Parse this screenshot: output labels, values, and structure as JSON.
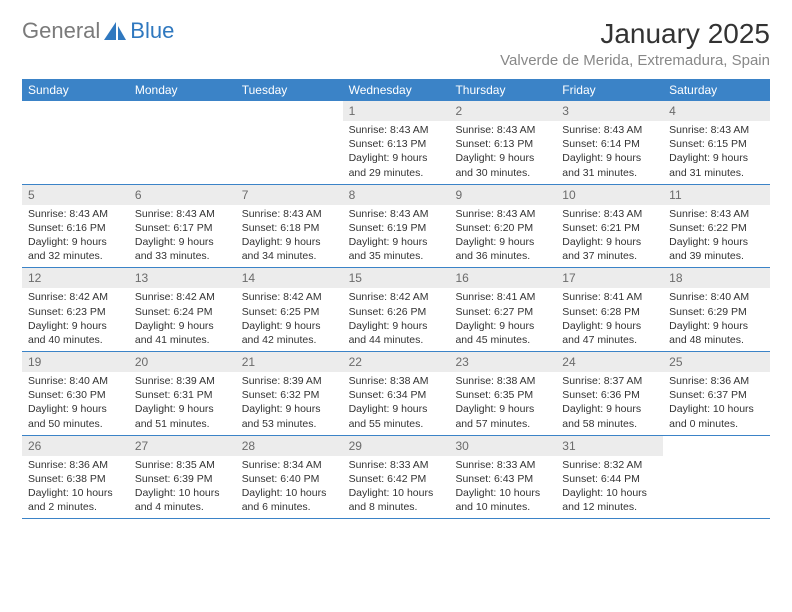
{
  "logo": {
    "text_general": "General",
    "text_blue": "Blue",
    "general_color": "#7a7a7a",
    "blue_color": "#2f78bf"
  },
  "title": "January 2025",
  "location": "Valverde de Merida, Extremadura, Spain",
  "colors": {
    "header_bg": "#3b83c7",
    "header_text": "#ffffff",
    "daynum_bg": "#ececec",
    "daynum_text": "#6b6b6b",
    "body_text": "#333333",
    "location_text": "#888888",
    "row_border": "#3b83c7",
    "page_bg": "#ffffff"
  },
  "weekdays": [
    "Sunday",
    "Monday",
    "Tuesday",
    "Wednesday",
    "Thursday",
    "Friday",
    "Saturday"
  ],
  "weeks": [
    [
      null,
      null,
      null,
      {
        "n": "1",
        "sr": "Sunrise: 8:43 AM",
        "ss": "Sunset: 6:13 PM",
        "dl1": "Daylight: 9 hours",
        "dl2": "and 29 minutes."
      },
      {
        "n": "2",
        "sr": "Sunrise: 8:43 AM",
        "ss": "Sunset: 6:13 PM",
        "dl1": "Daylight: 9 hours",
        "dl2": "and 30 minutes."
      },
      {
        "n": "3",
        "sr": "Sunrise: 8:43 AM",
        "ss": "Sunset: 6:14 PM",
        "dl1": "Daylight: 9 hours",
        "dl2": "and 31 minutes."
      },
      {
        "n": "4",
        "sr": "Sunrise: 8:43 AM",
        "ss": "Sunset: 6:15 PM",
        "dl1": "Daylight: 9 hours",
        "dl2": "and 31 minutes."
      }
    ],
    [
      {
        "n": "5",
        "sr": "Sunrise: 8:43 AM",
        "ss": "Sunset: 6:16 PM",
        "dl1": "Daylight: 9 hours",
        "dl2": "and 32 minutes."
      },
      {
        "n": "6",
        "sr": "Sunrise: 8:43 AM",
        "ss": "Sunset: 6:17 PM",
        "dl1": "Daylight: 9 hours",
        "dl2": "and 33 minutes."
      },
      {
        "n": "7",
        "sr": "Sunrise: 8:43 AM",
        "ss": "Sunset: 6:18 PM",
        "dl1": "Daylight: 9 hours",
        "dl2": "and 34 minutes."
      },
      {
        "n": "8",
        "sr": "Sunrise: 8:43 AM",
        "ss": "Sunset: 6:19 PM",
        "dl1": "Daylight: 9 hours",
        "dl2": "and 35 minutes."
      },
      {
        "n": "9",
        "sr": "Sunrise: 8:43 AM",
        "ss": "Sunset: 6:20 PM",
        "dl1": "Daylight: 9 hours",
        "dl2": "and 36 minutes."
      },
      {
        "n": "10",
        "sr": "Sunrise: 8:43 AM",
        "ss": "Sunset: 6:21 PM",
        "dl1": "Daylight: 9 hours",
        "dl2": "and 37 minutes."
      },
      {
        "n": "11",
        "sr": "Sunrise: 8:43 AM",
        "ss": "Sunset: 6:22 PM",
        "dl1": "Daylight: 9 hours",
        "dl2": "and 39 minutes."
      }
    ],
    [
      {
        "n": "12",
        "sr": "Sunrise: 8:42 AM",
        "ss": "Sunset: 6:23 PM",
        "dl1": "Daylight: 9 hours",
        "dl2": "and 40 minutes."
      },
      {
        "n": "13",
        "sr": "Sunrise: 8:42 AM",
        "ss": "Sunset: 6:24 PM",
        "dl1": "Daylight: 9 hours",
        "dl2": "and 41 minutes."
      },
      {
        "n": "14",
        "sr": "Sunrise: 8:42 AM",
        "ss": "Sunset: 6:25 PM",
        "dl1": "Daylight: 9 hours",
        "dl2": "and 42 minutes."
      },
      {
        "n": "15",
        "sr": "Sunrise: 8:42 AM",
        "ss": "Sunset: 6:26 PM",
        "dl1": "Daylight: 9 hours",
        "dl2": "and 44 minutes."
      },
      {
        "n": "16",
        "sr": "Sunrise: 8:41 AM",
        "ss": "Sunset: 6:27 PM",
        "dl1": "Daylight: 9 hours",
        "dl2": "and 45 minutes."
      },
      {
        "n": "17",
        "sr": "Sunrise: 8:41 AM",
        "ss": "Sunset: 6:28 PM",
        "dl1": "Daylight: 9 hours",
        "dl2": "and 47 minutes."
      },
      {
        "n": "18",
        "sr": "Sunrise: 8:40 AM",
        "ss": "Sunset: 6:29 PM",
        "dl1": "Daylight: 9 hours",
        "dl2": "and 48 minutes."
      }
    ],
    [
      {
        "n": "19",
        "sr": "Sunrise: 8:40 AM",
        "ss": "Sunset: 6:30 PM",
        "dl1": "Daylight: 9 hours",
        "dl2": "and 50 minutes."
      },
      {
        "n": "20",
        "sr": "Sunrise: 8:39 AM",
        "ss": "Sunset: 6:31 PM",
        "dl1": "Daylight: 9 hours",
        "dl2": "and 51 minutes."
      },
      {
        "n": "21",
        "sr": "Sunrise: 8:39 AM",
        "ss": "Sunset: 6:32 PM",
        "dl1": "Daylight: 9 hours",
        "dl2": "and 53 minutes."
      },
      {
        "n": "22",
        "sr": "Sunrise: 8:38 AM",
        "ss": "Sunset: 6:34 PM",
        "dl1": "Daylight: 9 hours",
        "dl2": "and 55 minutes."
      },
      {
        "n": "23",
        "sr": "Sunrise: 8:38 AM",
        "ss": "Sunset: 6:35 PM",
        "dl1": "Daylight: 9 hours",
        "dl2": "and 57 minutes."
      },
      {
        "n": "24",
        "sr": "Sunrise: 8:37 AM",
        "ss": "Sunset: 6:36 PM",
        "dl1": "Daylight: 9 hours",
        "dl2": "and 58 minutes."
      },
      {
        "n": "25",
        "sr": "Sunrise: 8:36 AM",
        "ss": "Sunset: 6:37 PM",
        "dl1": "Daylight: 10 hours",
        "dl2": "and 0 minutes."
      }
    ],
    [
      {
        "n": "26",
        "sr": "Sunrise: 8:36 AM",
        "ss": "Sunset: 6:38 PM",
        "dl1": "Daylight: 10 hours",
        "dl2": "and 2 minutes."
      },
      {
        "n": "27",
        "sr": "Sunrise: 8:35 AM",
        "ss": "Sunset: 6:39 PM",
        "dl1": "Daylight: 10 hours",
        "dl2": "and 4 minutes."
      },
      {
        "n": "28",
        "sr": "Sunrise: 8:34 AM",
        "ss": "Sunset: 6:40 PM",
        "dl1": "Daylight: 10 hours",
        "dl2": "and 6 minutes."
      },
      {
        "n": "29",
        "sr": "Sunrise: 8:33 AM",
        "ss": "Sunset: 6:42 PM",
        "dl1": "Daylight: 10 hours",
        "dl2": "and 8 minutes."
      },
      {
        "n": "30",
        "sr": "Sunrise: 8:33 AM",
        "ss": "Sunset: 6:43 PM",
        "dl1": "Daylight: 10 hours",
        "dl2": "and 10 minutes."
      },
      {
        "n": "31",
        "sr": "Sunrise: 8:32 AM",
        "ss": "Sunset: 6:44 PM",
        "dl1": "Daylight: 10 hours",
        "dl2": "and 12 minutes."
      },
      null
    ]
  ]
}
